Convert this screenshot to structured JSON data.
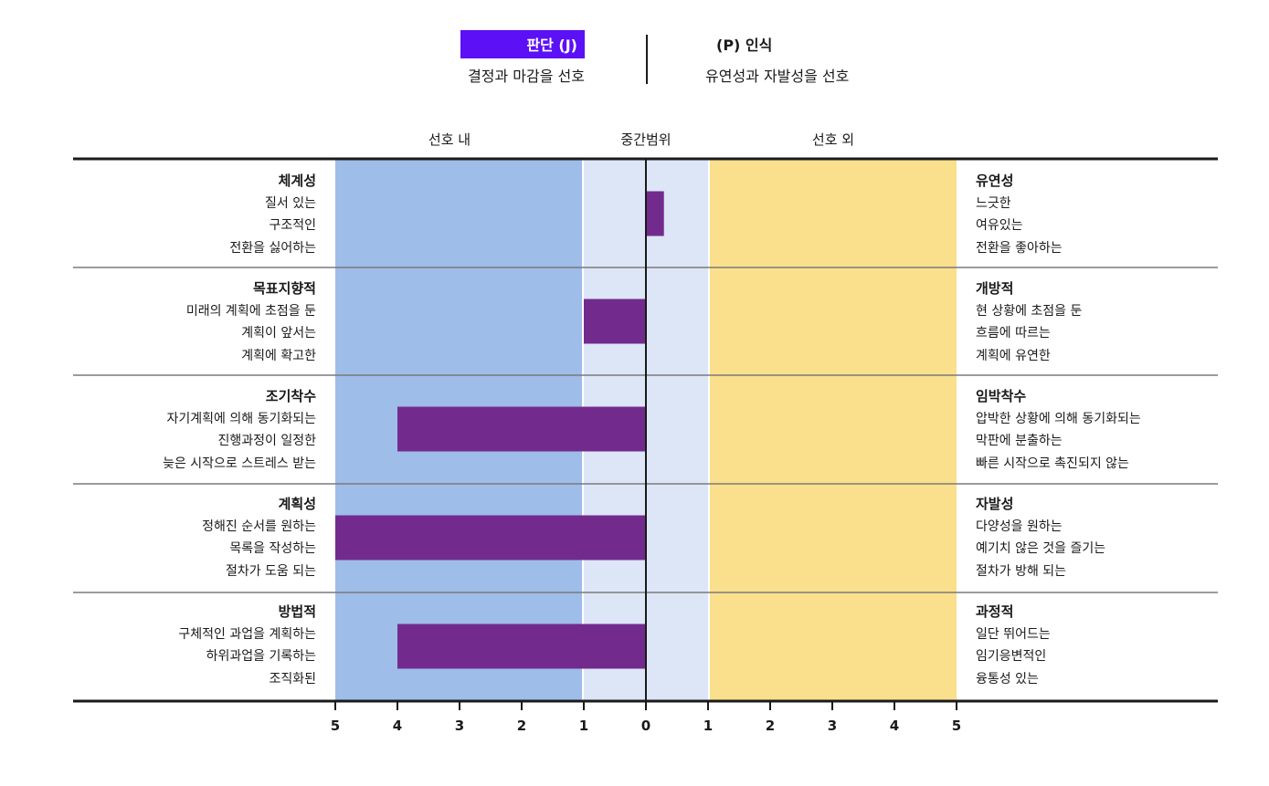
{
  "header": {
    "left_title": "판단 (J)",
    "left_subtitle": "결정과 마감을 선호",
    "right_title": "(P) 인식",
    "right_subtitle": "유연성과 자발성을 선호"
  },
  "zones": {
    "in_label": "선호 내",
    "mid_label": "중간범위",
    "out_label": "선호 외"
  },
  "colors": {
    "in_zone": "#9ebde9",
    "mid_zone": "#dce6f6",
    "out_zone": "#fae08c",
    "bar": "#722b8d",
    "header_box": "#5b10f5"
  },
  "rows": [
    {
      "left": {
        "title": "체계성",
        "items": [
          "질서 있는",
          "구조적인",
          "전환을 싫어하는"
        ]
      },
      "right": {
        "title": "유연성",
        "items": [
          "느긋한",
          "여유있는",
          "전환을 좋아하는"
        ]
      }
    },
    {
      "left": {
        "title": "목표지향적",
        "items": [
          "미래의 계획에 초점을 둔",
          "계획이 앞서는",
          "계획에 확고한"
        ]
      },
      "right": {
        "title": "개방적",
        "items": [
          "현 상황에 초점을 둔",
          "흐름에 따르는",
          "계획에 유연한"
        ]
      }
    },
    {
      "left": {
        "title": "조기착수",
        "items": [
          "자기계획에 의해 동기화되는",
          "진행과정이 일정한",
          "늦은 시작으로 스트레스 받는"
        ]
      },
      "right": {
        "title": "임박착수",
        "items": [
          "압박한 상황에 의해 동기화되는",
          "막판에 분출하는",
          "빠른 시작으로 촉진되지 않는"
        ]
      }
    },
    {
      "left": {
        "title": "계획성",
        "items": [
          "정해진 순서를 원하는",
          "목록을 작성하는",
          "절차가 도움 되는"
        ]
      },
      "right": {
        "title": "자발성",
        "items": [
          "다양성을 원하는",
          "예기치 않은 것을 즐기는",
          "절차가 방해 되는"
        ]
      }
    },
    {
      "left": {
        "title": "방법적",
        "items": [
          "구체적인 과업을 계획하는",
          "하위과업을 기록하는",
          "조직화된"
        ]
      },
      "right": {
        "title": "과정적",
        "items": [
          "일단 뛰어드는",
          "임기응변적인",
          "융통성 있는"
        ]
      }
    }
  ],
  "chart_data": {
    "type": "bar",
    "orientation": "horizontal-diverging",
    "categories": [
      "체계성 / 유연성",
      "목표지향적 / 개방적",
      "조기착수 / 임박착수",
      "계획성 / 자발성",
      "방법적 / 과정적"
    ],
    "values": [
      0.15,
      -1,
      -4,
      -5,
      -4
    ],
    "xlim": [
      -5,
      5
    ],
    "x_tick_labels": [
      "5",
      "4",
      "3",
      "2",
      "1",
      "0",
      "1",
      "2",
      "3",
      "4",
      "5"
    ],
    "x_tick_values": [
      -5,
      -4,
      -3,
      -2,
      -1,
      0,
      1,
      2,
      3,
      4,
      5
    ],
    "bar_center_offset": [
      0.15,
      0,
      0,
      0,
      0
    ],
    "bar_width_units": [
      0.28,
      1,
      4,
      5,
      4
    ]
  }
}
